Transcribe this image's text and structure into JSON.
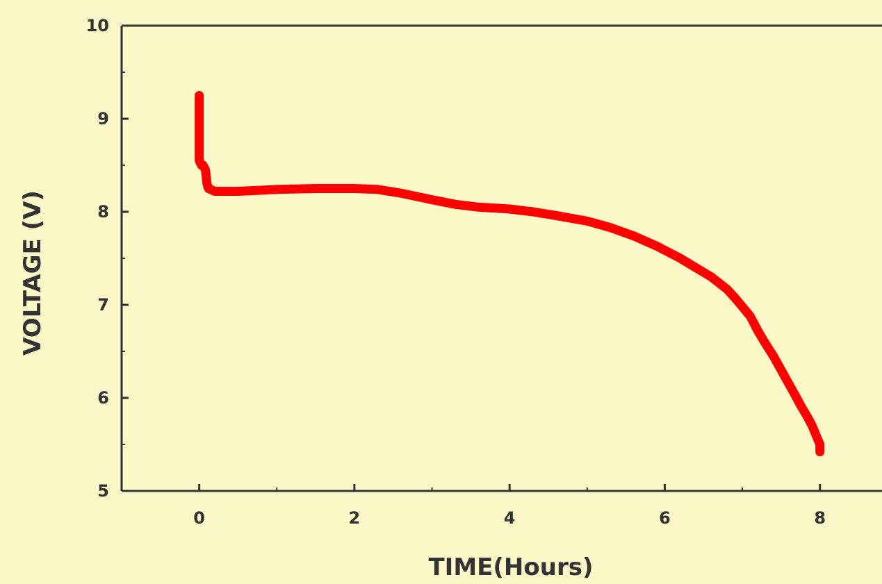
{
  "chart_data": {
    "type": "line",
    "title": "",
    "xlabel": "TIME(Hours)",
    "ylabel": "VOLTAGE (V)",
    "xlim": [
      -1,
      8.8
    ],
    "ylim": [
      5,
      10
    ],
    "x_ticks": [
      "0",
      "2",
      "4",
      "6",
      "8"
    ],
    "y_ticks": [
      "5",
      "6",
      "7",
      "8",
      "9",
      "10"
    ],
    "grid": false,
    "legend": "none",
    "series": [
      {
        "color": "#ff0000",
        "x": [
          0,
          0.0,
          0.03,
          0.05,
          0.08,
          0.1,
          0.12,
          0.2,
          0.3,
          0.5,
          1.0,
          1.5,
          2.0,
          2.3,
          2.6,
          3.0,
          3.3,
          3.6,
          4.0,
          4.3,
          4.6,
          5.0,
          5.3,
          5.6,
          5.9,
          6.2,
          6.4,
          6.6,
          6.8,
          6.9,
          7.0,
          7.1,
          7.2,
          7.3,
          7.4,
          7.5,
          7.6,
          7.7,
          7.75,
          7.8,
          7.85,
          7.9,
          7.95,
          8.0,
          8.0
        ],
        "y": [
          9.25,
          8.55,
          8.5,
          8.5,
          8.45,
          8.3,
          8.25,
          8.22,
          8.22,
          8.22,
          8.24,
          8.25,
          8.25,
          8.24,
          8.2,
          8.13,
          8.08,
          8.05,
          8.03,
          8.0,
          7.96,
          7.9,
          7.83,
          7.74,
          7.63,
          7.5,
          7.4,
          7.3,
          7.17,
          7.08,
          6.98,
          6.88,
          6.72,
          6.58,
          6.45,
          6.3,
          6.15,
          6.0,
          5.92,
          5.85,
          5.78,
          5.7,
          5.6,
          5.5,
          5.42
        ]
      }
    ]
  }
}
